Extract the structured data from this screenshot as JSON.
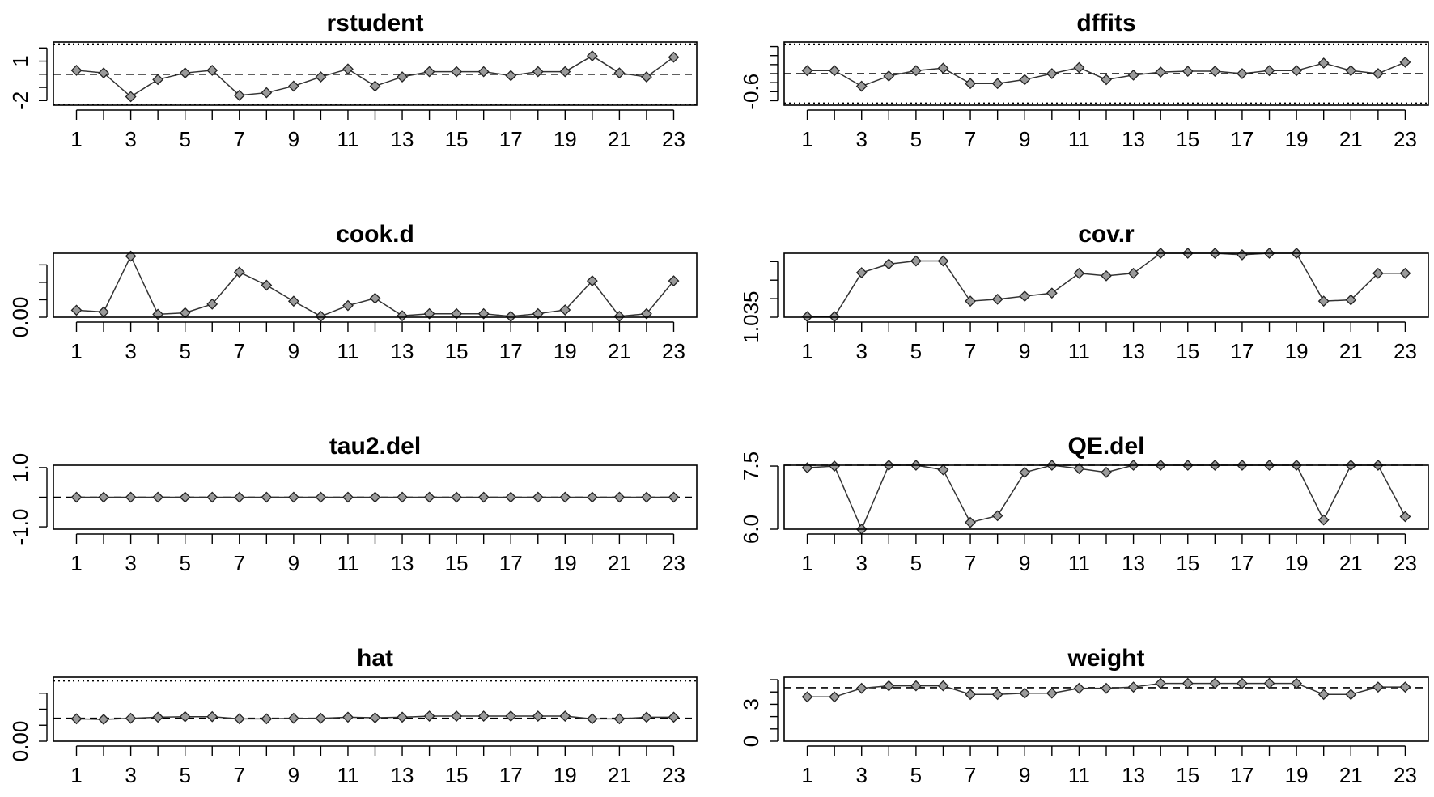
{
  "chart_data": [
    {
      "type": "line",
      "title": "rstudent",
      "x": [
        1,
        2,
        3,
        4,
        5,
        6,
        7,
        8,
        9,
        10,
        11,
        12,
        13,
        14,
        15,
        16,
        17,
        18,
        19,
        20,
        21,
        22,
        23
      ],
      "xticks": [
        1,
        3,
        5,
        7,
        9,
        11,
        13,
        15,
        17,
        19,
        21,
        23
      ],
      "y": [
        0.3,
        0.1,
        -1.7,
        -0.4,
        0.1,
        0.3,
        -1.6,
        -1.4,
        -0.9,
        -0.2,
        0.4,
        -0.9,
        -0.2,
        0.2,
        0.2,
        0.2,
        -0.1,
        0.2,
        0.2,
        1.4,
        0.1,
        -0.2,
        1.3
      ],
      "ylim": [
        -2.35,
        2.45
      ],
      "yticks": [
        1,
        -2
      ],
      "minor_yticks": [
        2,
        0,
        -1
      ],
      "hlines": [
        {
          "y": 0,
          "style": "dashed"
        },
        {
          "y": 2.3,
          "style": "dotted"
        },
        {
          "y": -2.3,
          "style": "dotted"
        }
      ]
    },
    {
      "type": "line",
      "title": "dffits",
      "x": [
        1,
        2,
        3,
        4,
        5,
        6,
        7,
        8,
        9,
        10,
        11,
        12,
        13,
        14,
        15,
        16,
        17,
        18,
        19,
        20,
        21,
        22,
        23
      ],
      "xticks": [
        1,
        3,
        5,
        7,
        9,
        11,
        13,
        15,
        17,
        19,
        21,
        23
      ],
      "y": [
        0.1,
        0.1,
        -0.42,
        -0.08,
        0.1,
        0.18,
        -0.33,
        -0.33,
        -0.2,
        0,
        0.2,
        -0.2,
        -0.05,
        0.05,
        0.08,
        0.08,
        0,
        0.1,
        0.1,
        0.35,
        0.1,
        0,
        0.38
      ],
      "ylim": [
        -1.05,
        1.05
      ],
      "yticks": [
        -0.6
      ],
      "minor_yticks": [
        0.9,
        0.6,
        0.3,
        0,
        -0.3,
        -0.9
      ],
      "hlines": [
        {
          "y": 0,
          "style": "dashed"
        },
        {
          "y": 0.98,
          "style": "dotted"
        },
        {
          "y": -0.98,
          "style": "dotted"
        }
      ]
    },
    {
      "type": "line",
      "title": "cook.d",
      "x": [
        1,
        2,
        3,
        4,
        5,
        6,
        7,
        8,
        9,
        10,
        11,
        12,
        13,
        14,
        15,
        16,
        17,
        18,
        19,
        20,
        21,
        22,
        23
      ],
      "xticks": [
        1,
        3,
        5,
        7,
        9,
        11,
        13,
        15,
        17,
        19,
        21,
        23
      ],
      "y": [
        0.024,
        0.018,
        0.21,
        0.01,
        0.015,
        0.045,
        0.155,
        0.11,
        0.055,
        0.003,
        0.04,
        0.065,
        0.005,
        0.012,
        0.012,
        0.012,
        0.003,
        0.012,
        0.025,
        0.125,
        0.003,
        0.012,
        0.125
      ],
      "ylim": [
        0,
        0.22
      ],
      "yticks": [
        0
      ],
      "ytick_labels": [
        "0.00"
      ],
      "minor_yticks": [
        0.06,
        0.12,
        0.18
      ],
      "hlines": []
    },
    {
      "type": "line",
      "title": "cov.r",
      "x": [
        1,
        2,
        3,
        4,
        5,
        6,
        7,
        8,
        9,
        10,
        11,
        12,
        13,
        14,
        15,
        16,
        17,
        18,
        19,
        20,
        21,
        22,
        23
      ],
      "xticks": [
        1,
        3,
        5,
        7,
        9,
        11,
        13,
        15,
        17,
        19,
        21,
        23
      ],
      "y": [
        1.0351,
        1.0351,
        1.0422,
        1.0436,
        1.0441,
        1.0441,
        1.0376,
        1.0379,
        1.0384,
        1.0389,
        1.0421,
        1.0417,
        1.0421,
        1.0455,
        1.0454,
        1.0454,
        1.0451,
        1.0454,
        1.0454,
        1.0376,
        1.0378,
        1.0421,
        1.0421
      ],
      "ylim": [
        1.035,
        1.04535
      ],
      "yticks": [
        1.035
      ],
      "ytick_labels": [
        "1.035"
      ],
      "minor_yticks": [
        1.038,
        1.041,
        1.044
      ],
      "hlines": []
    },
    {
      "type": "line",
      "title": "tau2.del",
      "x": [
        1,
        2,
        3,
        4,
        5,
        6,
        7,
        8,
        9,
        10,
        11,
        12,
        13,
        14,
        15,
        16,
        17,
        18,
        19,
        20,
        21,
        22,
        23
      ],
      "xticks": [
        1,
        3,
        5,
        7,
        9,
        11,
        13,
        15,
        17,
        19,
        21,
        23
      ],
      "y": [
        0,
        0,
        0,
        0,
        0,
        0,
        0,
        0,
        0,
        0,
        0,
        0,
        0,
        0,
        0,
        0,
        0,
        0,
        0,
        0,
        0,
        0,
        0
      ],
      "ylim": [
        -1.08,
        1.08
      ],
      "yticks": [
        1,
        -1
      ],
      "ytick_labels": [
        "1.0",
        "-1.0"
      ],
      "minor_yticks": [
        0
      ],
      "hlines": [
        {
          "y": 0,
          "style": "dashed"
        }
      ]
    },
    {
      "type": "line",
      "title": "QE.del",
      "x": [
        1,
        2,
        3,
        4,
        5,
        6,
        7,
        8,
        9,
        10,
        11,
        12,
        13,
        14,
        15,
        16,
        17,
        18,
        19,
        20,
        21,
        22,
        23
      ],
      "xticks": [
        1,
        3,
        5,
        7,
        9,
        11,
        13,
        15,
        17,
        19,
        21,
        23
      ],
      "y": [
        7.46,
        7.5,
        6.0,
        7.58,
        7.52,
        7.41,
        6.16,
        6.32,
        7.35,
        7.58,
        7.44,
        7.35,
        7.58,
        7.58,
        7.58,
        7.56,
        7.58,
        7.58,
        7.53,
        6.22,
        7.62,
        7.6,
        6.3
      ],
      "ylim": [
        6.0,
        7.52
      ],
      "yticks": [
        7.5,
        6.0
      ],
      "ytick_labels": [
        "7.5",
        "6.0"
      ],
      "minor_yticks": [],
      "hlines": [
        {
          "y": 7.55,
          "style": "dashed"
        }
      ]
    },
    {
      "type": "line",
      "title": "hat",
      "x": [
        1,
        2,
        3,
        4,
        5,
        6,
        7,
        8,
        9,
        10,
        11,
        12,
        13,
        14,
        15,
        16,
        17,
        18,
        19,
        20,
        21,
        22,
        23
      ],
      "xticks": [
        1,
        3,
        5,
        7,
        9,
        11,
        13,
        15,
        17,
        19,
        21,
        23
      ],
      "y": [
        0.042,
        0.041,
        0.043,
        0.045,
        0.046,
        0.046,
        0.042,
        0.042,
        0.043,
        0.043,
        0.045,
        0.044,
        0.045,
        0.047,
        0.047,
        0.047,
        0.047,
        0.047,
        0.047,
        0.042,
        0.042,
        0.045,
        0.045
      ],
      "ylim": [
        0,
        0.12
      ],
      "yticks": [
        0
      ],
      "ytick_labels": [
        "0.00"
      ],
      "minor_yticks": [
        0.03,
        0.06,
        0.09
      ],
      "hlines": [
        {
          "y": 0.043,
          "style": "dashed"
        },
        {
          "y": 0.113,
          "style": "dotted"
        }
      ]
    },
    {
      "type": "line",
      "title": "weight",
      "x": [
        1,
        2,
        3,
        4,
        5,
        6,
        7,
        8,
        9,
        10,
        11,
        12,
        13,
        14,
        15,
        16,
        17,
        18,
        19,
        20,
        21,
        22,
        23
      ],
      "xticks": [
        1,
        3,
        5,
        7,
        9,
        11,
        13,
        15,
        17,
        19,
        21,
        23
      ],
      "y": [
        3.6,
        3.6,
        4.3,
        4.5,
        4.5,
        4.5,
        3.8,
        3.8,
        3.9,
        3.9,
        4.3,
        4.3,
        4.4,
        4.7,
        4.7,
        4.7,
        4.7,
        4.7,
        4.7,
        3.8,
        3.8,
        4.4,
        4.4
      ],
      "ylim": [
        0,
        5.2
      ],
      "yticks": [
        3,
        0
      ],
      "ytick_labels": [
        "3",
        "0"
      ],
      "minor_yticks": [
        1,
        2,
        4,
        5
      ],
      "hlines": [
        {
          "y": 4.35,
          "style": "dashed"
        }
      ]
    }
  ]
}
